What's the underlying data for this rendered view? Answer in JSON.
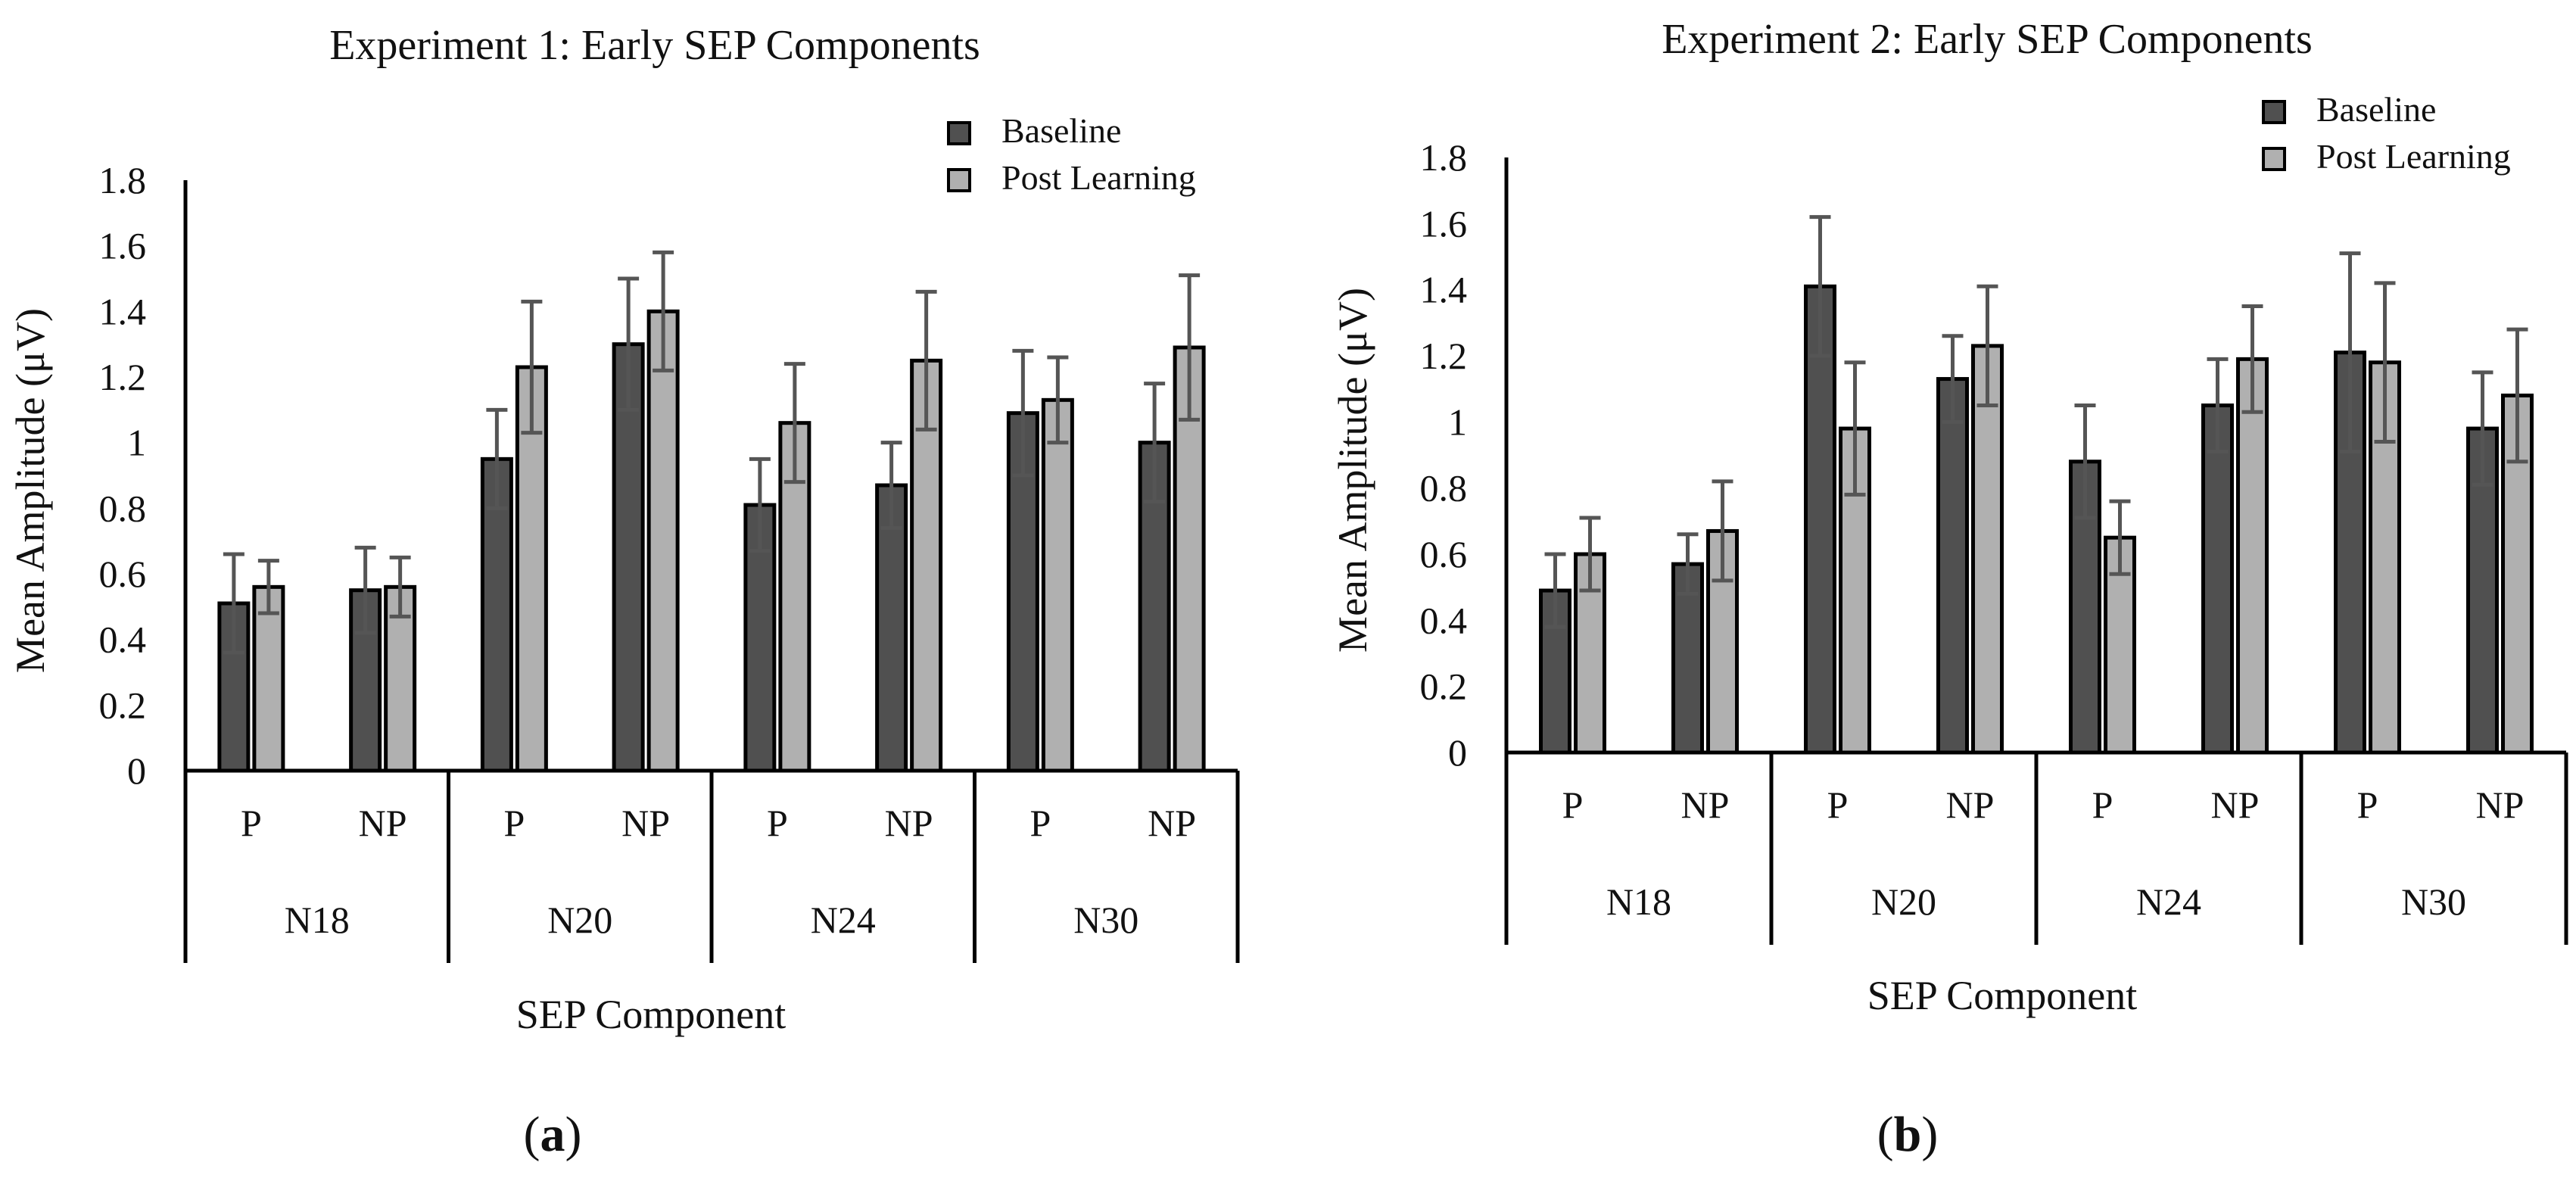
{
  "figures": [
    {
      "title": "Experiment 1: Early SEP Components",
      "caption_letter": "a"
    },
    {
      "title": "Experiment 2: Early SEP Components",
      "caption_letter": "b"
    }
  ],
  "chart_data": [
    {
      "type": "bar",
      "title": "Experiment 1: Early SEP Components",
      "xlabel": "SEP Component",
      "ylabel": "Mean Amplitude (μV)",
      "ylim": [
        0,
        1.8
      ],
      "yticks": [
        "0",
        "0.2",
        "0.4",
        "0.6",
        "0.8",
        "1",
        "1.2",
        "1.4",
        "1.6",
        "1.8"
      ],
      "grid": false,
      "legend_position": "top-right",
      "groups": [
        "N18",
        "N20",
        "N24",
        "N30"
      ],
      "subcategories": [
        "P",
        "NP"
      ],
      "categories": [
        "N18 P",
        "N18 NP",
        "N20 P",
        "N20 NP",
        "N24 P",
        "N24 NP",
        "N30 P",
        "N30 NP"
      ],
      "series": [
        {
          "name": "Baseline",
          "color": "#505050",
          "values": [
            0.51,
            0.55,
            0.95,
            1.3,
            0.81,
            0.87,
            1.09,
            1.0
          ],
          "errors": [
            0.15,
            0.13,
            0.15,
            0.2,
            0.14,
            0.13,
            0.19,
            0.18
          ]
        },
        {
          "name": "Post Learning",
          "color": "#b0b0b0",
          "values": [
            0.56,
            0.56,
            1.23,
            1.4,
            1.06,
            1.25,
            1.13,
            1.29
          ],
          "errors": [
            0.08,
            0.09,
            0.2,
            0.18,
            0.18,
            0.21,
            0.13,
            0.22
          ]
        }
      ]
    },
    {
      "type": "bar",
      "title": "Experiment 2: Early SEP Components",
      "xlabel": "SEP Component",
      "ylabel": "Mean Amplitude (μV)",
      "ylim": [
        0,
        1.8
      ],
      "yticks": [
        "0",
        "0.2",
        "0.4",
        "0.6",
        "0.8",
        "1",
        "1.2",
        "1.4",
        "1.6",
        "1.8"
      ],
      "grid": false,
      "legend_position": "top-right",
      "groups": [
        "N18",
        "N20",
        "N24",
        "N30"
      ],
      "subcategories": [
        "P",
        "NP"
      ],
      "categories": [
        "N18 P",
        "N18 NP",
        "N20 P",
        "N20 NP",
        "N24 P",
        "N24 NP",
        "N30 P",
        "N30 NP"
      ],
      "series": [
        {
          "name": "Baseline",
          "color": "#505050",
          "values": [
            0.49,
            0.57,
            1.41,
            1.13,
            0.88,
            1.05,
            1.21,
            0.98
          ],
          "errors": [
            0.11,
            0.09,
            0.21,
            0.13,
            0.17,
            0.14,
            0.3,
            0.17
          ]
        },
        {
          "name": "Post Learning",
          "color": "#b0b0b0",
          "values": [
            0.6,
            0.67,
            0.98,
            1.23,
            0.65,
            1.19,
            1.18,
            1.08
          ],
          "errors": [
            0.11,
            0.15,
            0.2,
            0.18,
            0.11,
            0.16,
            0.24,
            0.2
          ]
        }
      ]
    }
  ]
}
